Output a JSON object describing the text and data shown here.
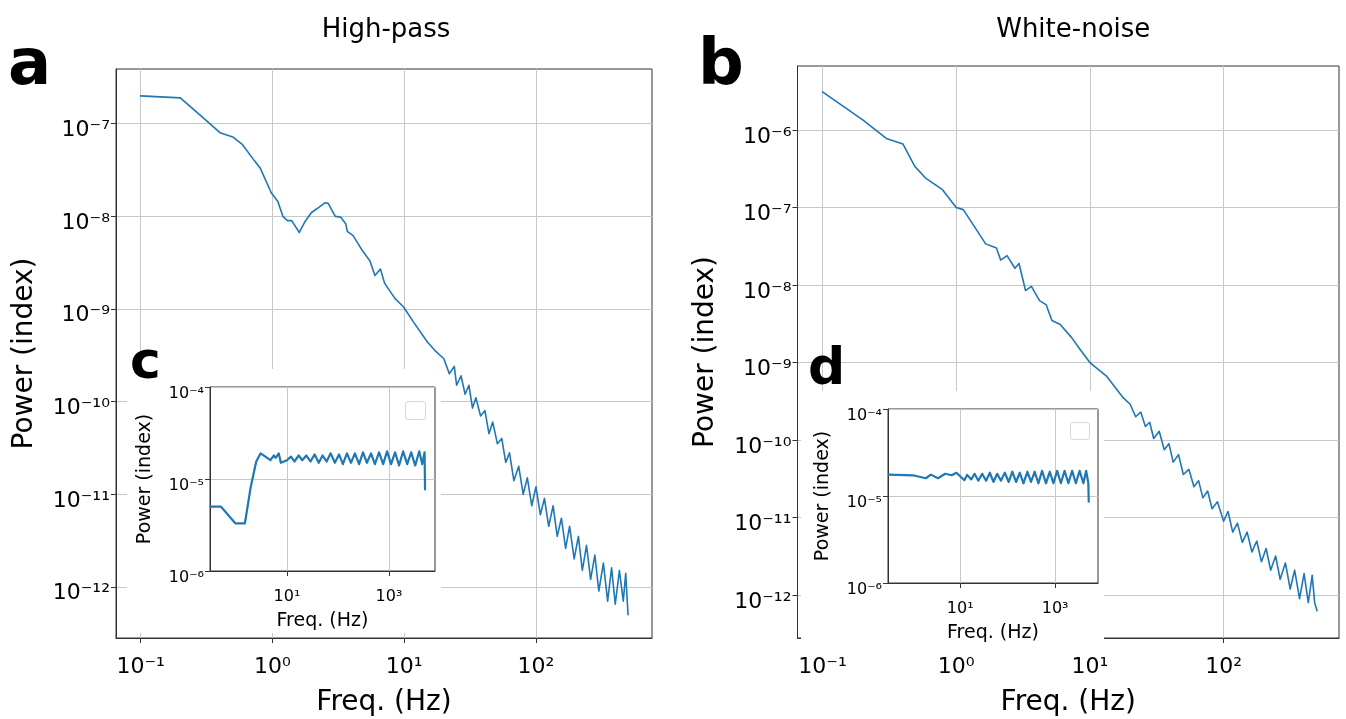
{
  "chart_data": [
    {
      "type": "line",
      "title": "High-pass",
      "xlabel": "Freq. (Hz)",
      "ylabel": "Power (index)",
      "annotations": [
        "a"
      ],
      "log": "xy",
      "grid": true,
      "marker": "none",
      "xlim": [
        0.065,
        760
      ],
      "ylim": [
        2.8e-13,
        3.9e-07
      ],
      "xticks": [
        {
          "value": 0.1,
          "label": "10⁻¹"
        },
        {
          "value": 1,
          "label": "10⁰"
        },
        {
          "value": 10,
          "label": "10¹"
        },
        {
          "value": 100,
          "label": "10²"
        }
      ],
      "yticks": [
        {
          "value": 1e-12,
          "label": "10⁻¹²"
        },
        {
          "value": 1e-11,
          "label": "10⁻¹¹"
        },
        {
          "value": 1e-10,
          "label": "10⁻¹⁰"
        },
        {
          "value": 1e-09,
          "label": "10⁻⁹"
        },
        {
          "value": 1e-08,
          "label": "10⁻⁸"
        },
        {
          "value": 1e-07,
          "label": "10⁻⁷"
        }
      ],
      "series": [
        {
          "color": "#1f77b4",
          "x": [
            0.1,
            0.2,
            0.29,
            0.4,
            0.5,
            0.59,
            0.71,
            0.81,
            0.98,
            1.1,
            1.2,
            1.3,
            1.4,
            1.6,
            1.77,
            1.98,
            2.16,
            2.5,
            2.65,
            3.0,
            3.3,
            3.6,
            3.7,
            4.1,
            4.8,
            5.5,
            6.0,
            6.6,
            7.1,
            8.5,
            9.9,
            11.7,
            15,
            17,
            20,
            22,
            24,
            25,
            27,
            29,
            31,
            33,
            35,
            38,
            41,
            44,
            47,
            51,
            55,
            59,
            63,
            68,
            74,
            80,
            86,
            93,
            100,
            108,
            116,
            125,
            135,
            145,
            156,
            168,
            180,
            195,
            210,
            225,
            242,
            260,
            280,
            300,
            325,
            350,
            375,
            400,
            430,
            460,
            480,
            500
          ],
          "values": [
            2e-07,
            1.9e-07,
            1.2e-07,
            8e-08,
            7.2e-08,
            6e-08,
            4.2e-08,
            3.3e-08,
            1.8e-08,
            1.45e-08,
            1e-08,
            9e-09,
            9e-09,
            6.7e-09,
            8.8e-09,
            1.1e-08,
            1.2e-08,
            1.4e-08,
            1.38e-08,
            1e-08,
            9.8e-09,
            8.3e-09,
            6.9e-09,
            6.2e-09,
            4.3e-09,
            3.3e-09,
            2.3e-09,
            2.7e-09,
            1.9e-09,
            1.3e-09,
            1.05e-09,
            7.3e-10,
            4.4e-10,
            3.6e-10,
            2.9e-10,
            2e-10,
            2.4e-10,
            1.5e-10,
            1.9e-10,
            1.2e-10,
            1.5e-10,
            8.5e-11,
            1.1e-10,
            7e-11,
            8e-11,
            4.5e-11,
            6e-11,
            3.5e-11,
            4e-11,
            2.2e-11,
            2.8e-11,
            1.4e-11,
            2e-11,
            1e-11,
            1.5e-11,
            7.5e-12,
            1.2e-11,
            6e-12,
            9e-12,
            4.5e-12,
            7.5e-12,
            3.5e-12,
            5.5e-12,
            2.6e-12,
            4.5e-12,
            2e-12,
            3.5e-12,
            1.5e-12,
            2.8e-12,
            1.2e-12,
            2.2e-12,
            9e-13,
            1.8e-12,
            7e-13,
            1.6e-12,
            6.5e-13,
            1.5e-12,
            7e-13,
            1.4e-12,
            5e-13
          ]
        }
      ]
    },
    {
      "type": "line",
      "title": "White-noise",
      "xlabel": "Freq. (Hz)",
      "ylabel": "Power (index)",
      "annotations": [
        "b"
      ],
      "log": "xy",
      "grid": true,
      "marker": "none",
      "xlim": [
        0.065,
        730
      ],
      "ylim": [
        2.8e-13,
        6.7e-06
      ],
      "xticks": [
        {
          "value": 0.1,
          "label": "10⁻¹"
        },
        {
          "value": 1,
          "label": "10⁰"
        },
        {
          "value": 10,
          "label": "10¹"
        },
        {
          "value": 100,
          "label": "10²"
        }
      ],
      "yticks": [
        {
          "value": 1e-12,
          "label": "10⁻¹²"
        },
        {
          "value": 1e-11,
          "label": "10⁻¹¹"
        },
        {
          "value": 1e-10,
          "label": "10⁻¹⁰"
        },
        {
          "value": 1e-09,
          "label": "10⁻⁹"
        },
        {
          "value": 1e-08,
          "label": "10⁻⁸"
        },
        {
          "value": 1e-07,
          "label": "10⁻⁷"
        },
        {
          "value": 1e-06,
          "label": "10⁻⁶"
        }
      ],
      "series": [
        {
          "color": "#1f77b4",
          "x": [
            0.1,
            0.2,
            0.3,
            0.4,
            0.49,
            0.59,
            0.79,
            1.0,
            1.13,
            1.35,
            1.66,
            2.0,
            2.15,
            2.4,
            2.75,
            2.95,
            3.3,
            3.65,
            4.2,
            4.7,
            5.2,
            6.0,
            7.3,
            8.4,
            10,
            13.3,
            17.8,
            20,
            22,
            24,
            26,
            28,
            30,
            33,
            36,
            39,
            42,
            46,
            50,
            55,
            60,
            65,
            70,
            76,
            82,
            90,
            100,
            108,
            117,
            127,
            138,
            150,
            163,
            177,
            192,
            208,
            225,
            245,
            265,
            290,
            315,
            340,
            370,
            400,
            430,
            460,
            480,
            500
          ],
          "values": [
            3.1e-06,
            1.35e-06,
            7.8e-07,
            6.6e-07,
            3.4e-07,
            2.4e-07,
            1.7e-07,
            1e-07,
            9.4e-08,
            5.9e-08,
            3.4e-08,
            3e-08,
            2.1e-08,
            2.4e-08,
            1.65e-08,
            1.9e-08,
            8.5e-09,
            9.6e-09,
            6.3e-09,
            5.6e-09,
            3.5e-09,
            3.1e-09,
            2.1e-09,
            1.5e-09,
            1e-09,
            6.7e-10,
            3.5e-10,
            2.9e-10,
            2e-10,
            2.3e-10,
            1.5e-10,
            1.7e-10,
            1.05e-10,
            1.3e-10,
            7.5e-11,
            9e-11,
            5.2e-11,
            6.5e-11,
            3.6e-11,
            4.2e-11,
            2.5e-11,
            3e-11,
            1.8e-11,
            2.2e-11,
            1.3e-11,
            1.6e-11,
            9e-12,
            1.2e-11,
            6.5e-12,
            8.5e-12,
            4.8e-12,
            6.5e-12,
            3.6e-12,
            5e-12,
            2.7e-12,
            4e-12,
            2.1e-12,
            3.2e-12,
            1.6e-12,
            2.6e-12,
            1.2e-12,
            2.1e-12,
            9e-13,
            1.9e-12,
            8e-13,
            1.8e-12,
            8e-13,
            6.3e-13
          ]
        }
      ]
    },
    {
      "type": "line",
      "xlabel": "Freq. (Hz)",
      "ylabel": "Power (index)",
      "annotations": [
        "c"
      ],
      "log": "xy",
      "grid": true,
      "marker": "none",
      "xlim": [
        0.31,
        8000
      ],
      "ylim": [
        1e-06,
        0.0001
      ],
      "xticks": [
        {
          "value": 10,
          "label": "10¹"
        },
        {
          "value": 1000,
          "label": "10³"
        }
      ],
      "yticks": [
        {
          "value": 1e-06,
          "label": "10⁻⁶"
        },
        {
          "value": 1e-05,
          "label": "10⁻⁵"
        },
        {
          "value": 0.0001,
          "label": "10⁻⁴"
        }
      ],
      "series": [
        {
          "color": "#1f77b4",
          "x": [
            0.32,
            0.51,
            0.97,
            1.5,
            1.95,
            2.5,
            3.05,
            4.75,
            5.5,
            6,
            6.9,
            7.6,
            10,
            12,
            14,
            17,
            20,
            24,
            29,
            35,
            42,
            50,
            60,
            72,
            87,
            105,
            125,
            150,
            180,
            215,
            260,
            310,
            370,
            445,
            530,
            640,
            770,
            920,
            1100,
            1320,
            1580,
            1900,
            2280,
            2730,
            3280,
            3930,
            4500,
            5000,
            5100
          ],
          "values": [
            5e-06,
            5e-06,
            3.3e-06,
            3.3e-06,
            8.2e-06,
            1.55e-05,
            1.9e-05,
            1.6e-05,
            1.8e-05,
            1.7e-05,
            1.9e-05,
            1.5e-05,
            1.6e-05,
            1.75e-05,
            1.55e-05,
            1.8e-05,
            1.6e-05,
            1.8e-05,
            1.55e-05,
            1.85e-05,
            1.5e-05,
            1.8e-05,
            1.55e-05,
            1.9e-05,
            1.5e-05,
            1.85e-05,
            1.45e-05,
            1.9e-05,
            1.5e-05,
            1.9e-05,
            1.45e-05,
            1.95e-05,
            1.5e-05,
            1.9e-05,
            1.45e-05,
            1.95e-05,
            1.45e-05,
            2e-05,
            1.45e-05,
            1.95e-05,
            1.4e-05,
            2e-05,
            1.45e-05,
            1.95e-05,
            1.4e-05,
            2e-05,
            1.45e-05,
            1.95e-05,
            7.7e-06
          ]
        }
      ]
    },
    {
      "type": "line",
      "xlabel": "Freq. (Hz)",
      "ylabel": "Power (index)",
      "annotations": [
        "d"
      ],
      "log": "xy",
      "grid": true,
      "marker": "none",
      "xlim": [
        0.3,
        8000
      ],
      "ylim": [
        1e-06,
        0.0001
      ],
      "xticks": [
        {
          "value": 10,
          "label": "10¹"
        },
        {
          "value": 1000,
          "label": "10³"
        }
      ],
      "yticks": [
        {
          "value": 1e-06,
          "label": "10⁻⁶"
        },
        {
          "value": 1e-05,
          "label": "10⁻⁵"
        },
        {
          "value": 0.0001,
          "label": "10⁻⁴"
        }
      ],
      "series": [
        {
          "color": "#1f77b4",
          "x": [
            0.31,
            1.0,
            1.88,
            2.4,
            3.4,
            4.8,
            6.6,
            8.3,
            12.2,
            14,
            17,
            20,
            24,
            29,
            35,
            42,
            50,
            60,
            72,
            87,
            105,
            125,
            150,
            180,
            215,
            260,
            310,
            370,
            445,
            530,
            640,
            770,
            920,
            1100,
            1320,
            1580,
            1900,
            2280,
            2730,
            3280,
            3930,
            4500,
            5000,
            5100
          ],
          "values": [
            1.76e-05,
            1.73e-05,
            1.6e-05,
            1.76e-05,
            1.6e-05,
            1.8e-05,
            1.73e-05,
            1.85e-05,
            1.52e-05,
            1.75e-05,
            1.55e-05,
            1.8e-05,
            1.5e-05,
            1.8e-05,
            1.5e-05,
            1.85e-05,
            1.45e-05,
            1.8e-05,
            1.5e-05,
            1.85e-05,
            1.45e-05,
            1.9e-05,
            1.45e-05,
            1.85e-05,
            1.4e-05,
            1.9e-05,
            1.45e-05,
            1.9e-05,
            1.4e-05,
            1.95e-05,
            1.4e-05,
            1.9e-05,
            1.4e-05,
            1.95e-05,
            1.4e-05,
            1.95e-05,
            1.4e-05,
            1.95e-05,
            1.4e-05,
            1.95e-05,
            1.4e-05,
            1.95e-05,
            1.4e-05,
            8.6e-06
          ]
        }
      ]
    }
  ]
}
